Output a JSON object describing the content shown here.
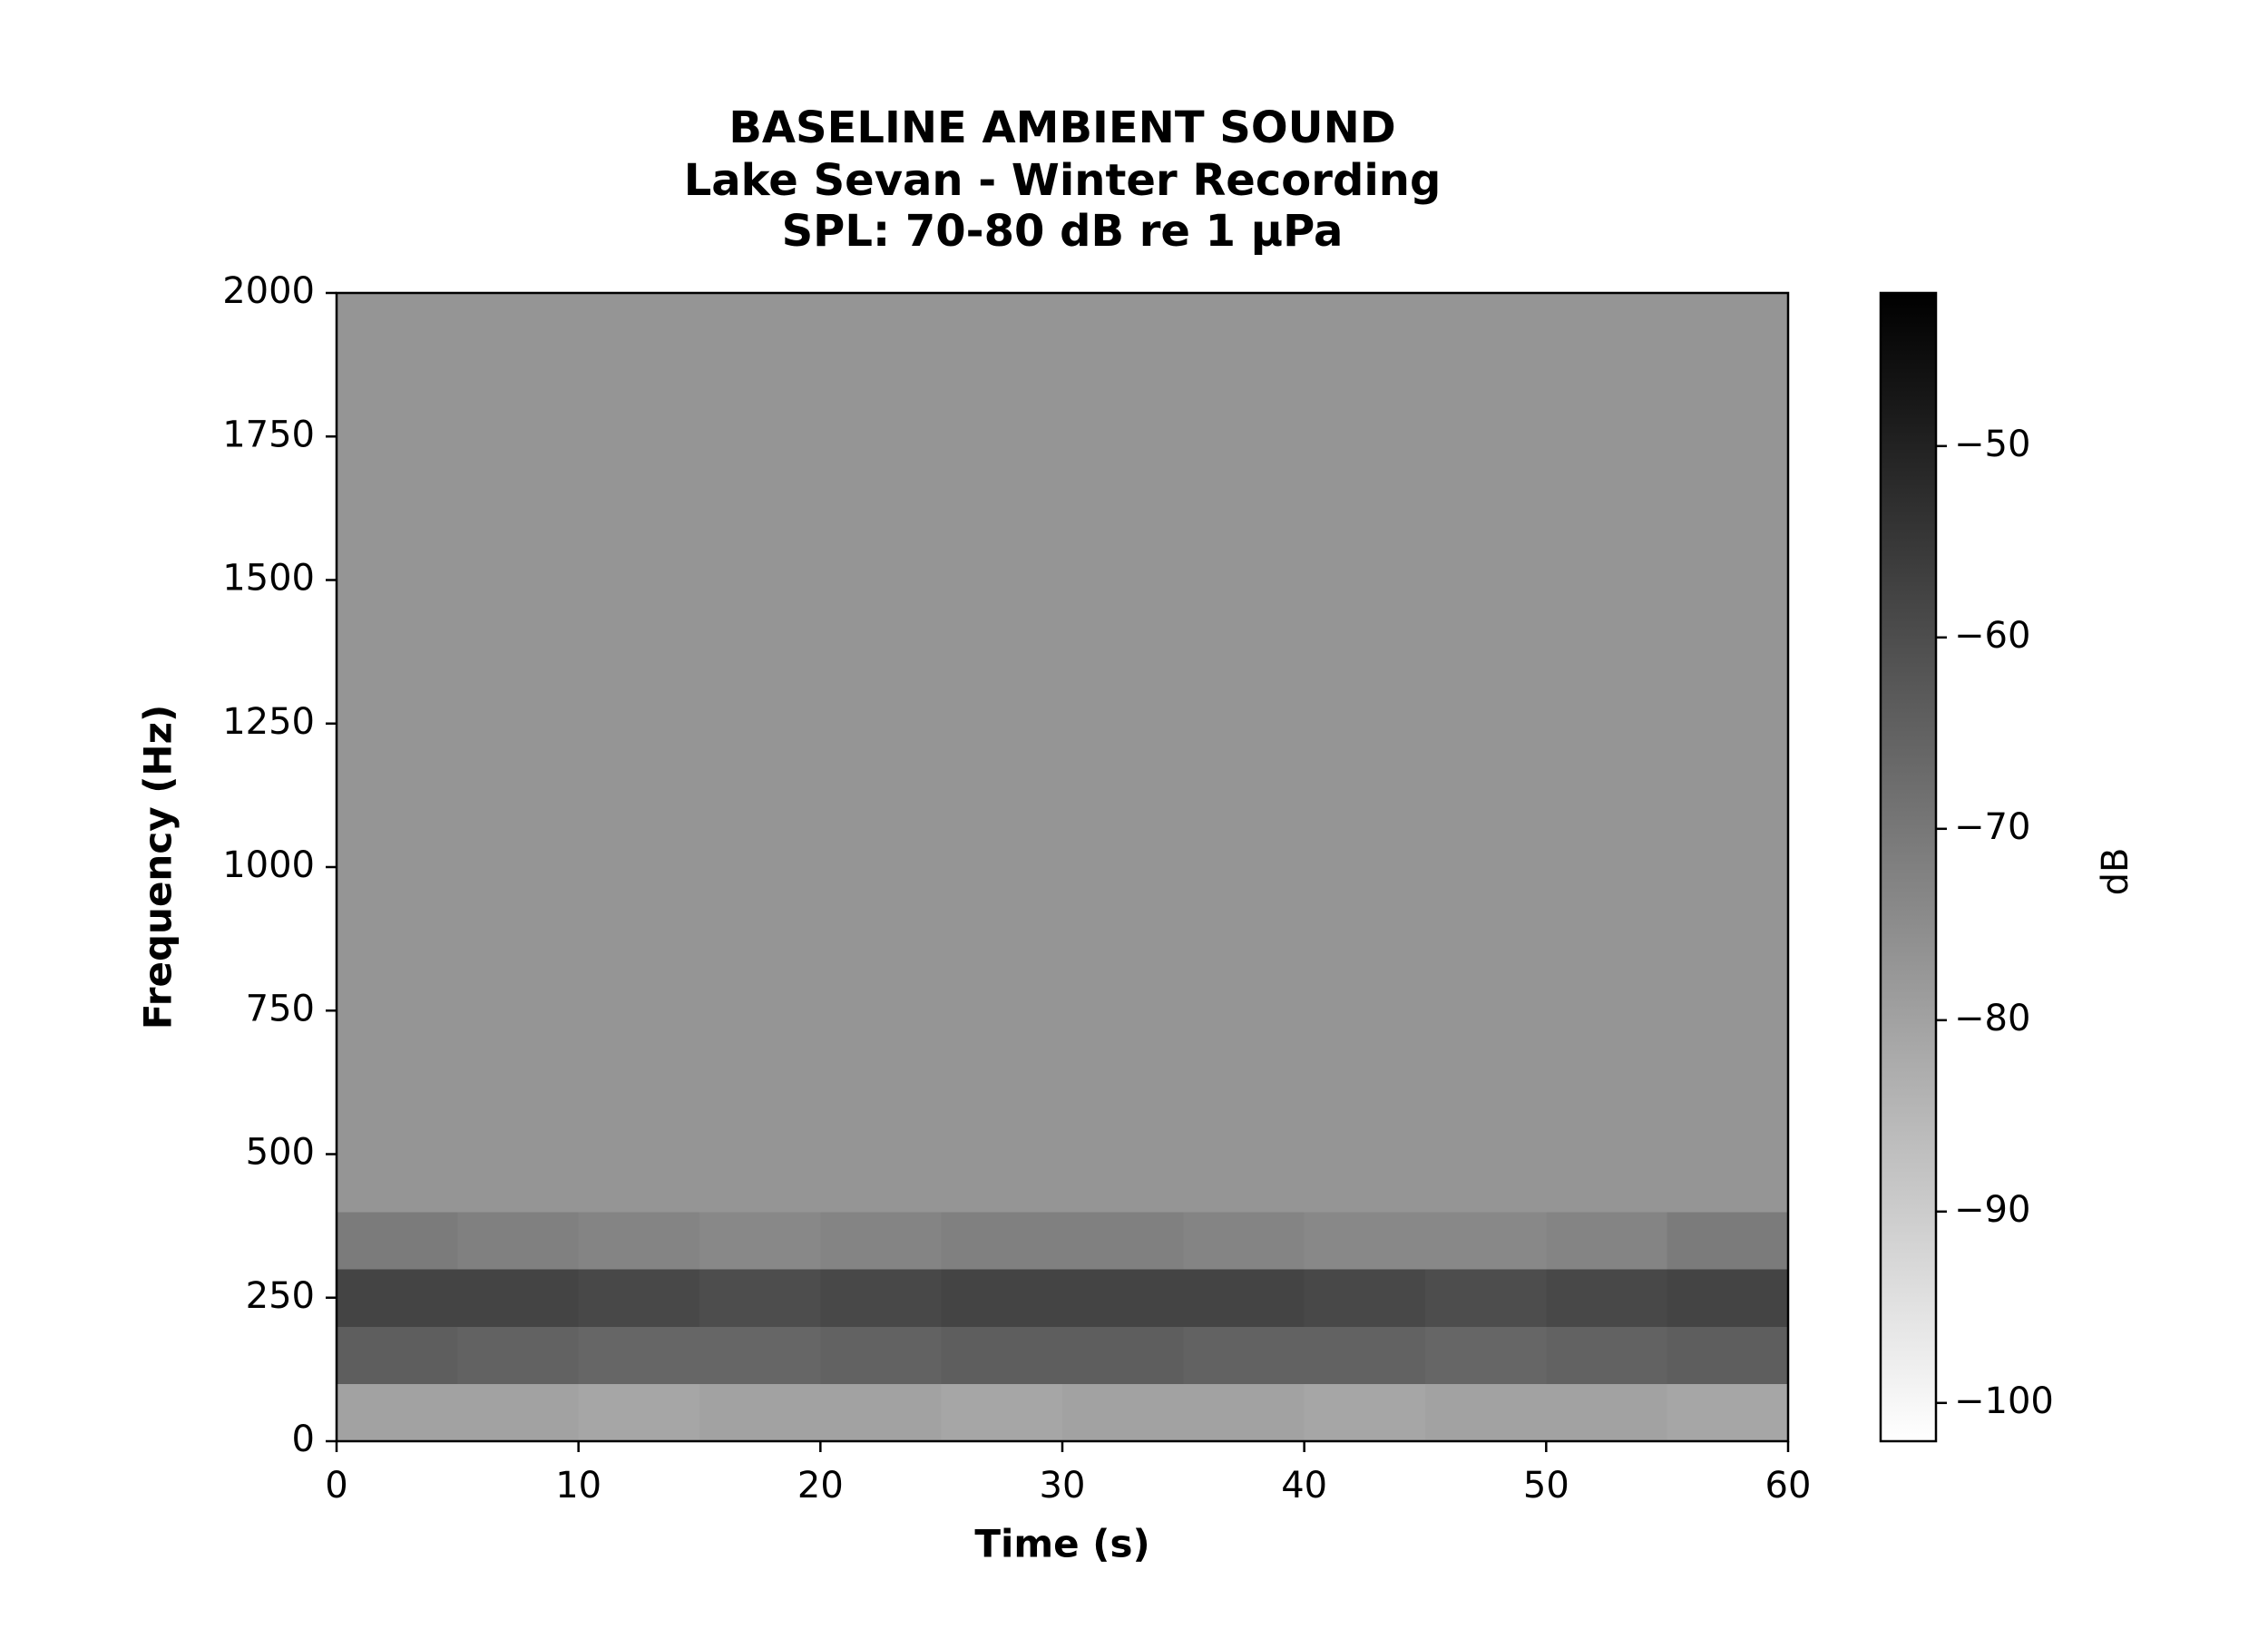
{
  "chart_data": {
    "type": "heatmap",
    "title": "BASELINE AMBIENT SOUND",
    "subtitle": [
      "Lake Sevan - Winter Recording",
      "SPL: 70-80 dB re 1 µPa"
    ],
    "x_label": "Time (s)",
    "y_label": "Frequency (Hz)",
    "colorbar_label": "dB",
    "colormap": "gray_r",
    "xbins": [
      0,
      5,
      10,
      15,
      20,
      25,
      30,
      35,
      40,
      45,
      50,
      55,
      60
    ],
    "ybins": [
      0,
      100,
      200,
      300,
      400,
      500,
      600,
      700,
      800,
      900,
      1000,
      1100,
      1200,
      1300,
      1400,
      1500,
      1600,
      1700,
      1800,
      1900,
      2000
    ],
    "z": [
      [
        -80,
        -80,
        -81,
        -80,
        -80,
        -81,
        -80,
        -80,
        -81,
        -80,
        -80,
        -81
      ],
      [
        -64,
        -65,
        -66,
        -66,
        -65,
        -64,
        -64,
        -65,
        -65,
        -66,
        -65,
        -64
      ],
      [
        -58,
        -58,
        -59,
        -60,
        -59,
        -58,
        -58,
        -58,
        -59,
        -60,
        -59,
        -58
      ],
      [
        -71,
        -72,
        -73,
        -74,
        -73,
        -72,
        -72,
        -73,
        -74,
        -74,
        -73,
        -71
      ],
      [
        -77,
        -77,
        -77,
        -77,
        -77,
        -77,
        -77,
        -77,
        -77,
        -77,
        -77,
        -77
      ],
      [
        -77,
        -77,
        -77,
        -77,
        -77,
        -77,
        -77,
        -77,
        -77,
        -77,
        -77,
        -77
      ],
      [
        -77,
        -77,
        -77,
        -77,
        -77,
        -77,
        -77,
        -77,
        -77,
        -77,
        -77,
        -77
      ],
      [
        -77,
        -77,
        -77,
        -77,
        -77,
        -77,
        -77,
        -77,
        -77,
        -77,
        -77,
        -77
      ],
      [
        -77,
        -77,
        -77,
        -77,
        -77,
        -77,
        -77,
        -77,
        -77,
        -77,
        -77,
        -77
      ],
      [
        -77,
        -77,
        -77,
        -77,
        -77,
        -77,
        -77,
        -77,
        -77,
        -77,
        -77,
        -77
      ],
      [
        -77,
        -77,
        -77,
        -77,
        -77,
        -77,
        -77,
        -77,
        -77,
        -77,
        -77,
        -77
      ],
      [
        -77,
        -77,
        -77,
        -77,
        -77,
        -77,
        -77,
        -77,
        -77,
        -77,
        -77,
        -77
      ],
      [
        -77,
        -77,
        -77,
        -77,
        -77,
        -77,
        -77,
        -77,
        -77,
        -77,
        -77,
        -77
      ],
      [
        -77,
        -77,
        -77,
        -77,
        -77,
        -77,
        -77,
        -77,
        -77,
        -77,
        -77,
        -77
      ],
      [
        -77,
        -77,
        -77,
        -77,
        -77,
        -77,
        -77,
        -77,
        -77,
        -77,
        -77,
        -77
      ],
      [
        -77,
        -77,
        -77,
        -77,
        -77,
        -77,
        -77,
        -77,
        -77,
        -77,
        -77,
        -77
      ],
      [
        -77,
        -77,
        -77,
        -77,
        -77,
        -77,
        -77,
        -77,
        -77,
        -77,
        -77,
        -77
      ],
      [
        -77,
        -77,
        -77,
        -77,
        -77,
        -77,
        -77,
        -77,
        -77,
        -77,
        -77,
        -77
      ],
      [
        -77,
        -77,
        -77,
        -77,
        -77,
        -77,
        -77,
        -77,
        -77,
        -77,
        -77,
        -77
      ],
      [
        -77,
        -77,
        -77,
        -77,
        -77,
        -77,
        -77,
        -77,
        -77,
        -77,
        -77,
        -77
      ]
    ],
    "xlim": [
      0,
      60
    ],
    "xticks": [
      0,
      10,
      20,
      30,
      40,
      50,
      60
    ],
    "ylim": [
      0,
      2000
    ],
    "yticks": [
      0,
      250,
      500,
      750,
      1000,
      1250,
      1500,
      1750,
      2000
    ],
    "clim": [
      -102,
      -42
    ],
    "cticks": [
      {
        "value": -50,
        "label": "−50"
      },
      {
        "value": -60,
        "label": "−60"
      },
      {
        "value": -70,
        "label": "−70"
      },
      {
        "value": -80,
        "label": "−80"
      },
      {
        "value": -90,
        "label": "−90"
      },
      {
        "value": -100,
        "label": "−100"
      }
    ]
  }
}
